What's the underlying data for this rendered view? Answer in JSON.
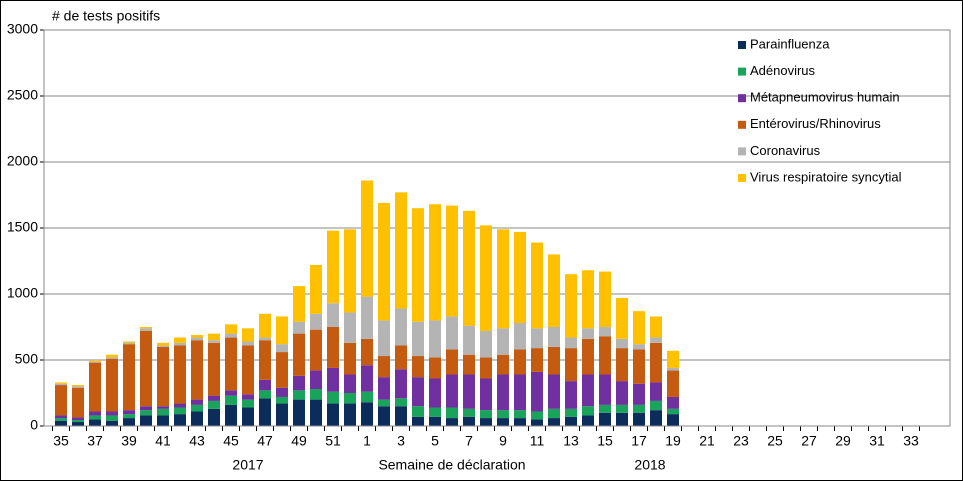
{
  "chart_data": {
    "type": "stacked_bar",
    "title": "# de tests positifs",
    "x_label": "Semaine de déclaration",
    "annotations": [
      "2017",
      "2018"
    ],
    "categories": [
      "35",
      null,
      "37",
      null,
      "39",
      null,
      "41",
      null,
      "43",
      null,
      "45",
      null,
      "47",
      null,
      "49",
      null,
      "51",
      null,
      "1",
      null,
      "3",
      null,
      "5",
      null,
      "7",
      null,
      "9",
      null,
      "11",
      null,
      "13",
      null,
      "15",
      null,
      "17",
      null,
      "19",
      null,
      "21",
      null,
      "23",
      null,
      "25",
      null,
      "27",
      null,
      "29",
      null,
      "31",
      null,
      "33",
      null
    ],
    "series": [
      {
        "name": "Parainfluenza",
        "color": "#0c2d5c",
        "values": [
          40,
          30,
          50,
          40,
          60,
          80,
          80,
          90,
          110,
          130,
          160,
          140,
          210,
          170,
          200,
          200,
          170,
          170,
          180,
          150,
          150,
          70,
          70,
          60,
          70,
          60,
          60,
          60,
          50,
          60,
          70,
          80,
          100,
          100,
          100,
          120,
          90,
          null,
          null,
          null,
          null,
          null,
          null,
          null,
          null,
          null,
          null,
          null,
          null,
          null,
          null,
          null
        ]
      },
      {
        "name": "Adénovirus",
        "color": "#1aa35a",
        "values": [
          20,
          15,
          30,
          40,
          30,
          40,
          50,
          50,
          50,
          60,
          70,
          60,
          60,
          50,
          70,
          80,
          90,
          80,
          80,
          50,
          60,
          80,
          70,
          80,
          60,
          60,
          60,
          60,
          60,
          70,
          60,
          70,
          60,
          60,
          60,
          70,
          40,
          null,
          null,
          null,
          null,
          null,
          null,
          null,
          null,
          null,
          null,
          null,
          null,
          null,
          null,
          null
        ]
      },
      {
        "name": "Métapneumovirus humain",
        "color": "#7030a0",
        "values": [
          20,
          20,
          30,
          30,
          30,
          30,
          20,
          30,
          40,
          40,
          40,
          40,
          80,
          70,
          110,
          140,
          180,
          140,
          200,
          170,
          220,
          220,
          220,
          250,
          260,
          240,
          270,
          270,
          300,
          260,
          210,
          240,
          230,
          180,
          160,
          140,
          90,
          null,
          null,
          null,
          null,
          null,
          null,
          null,
          null,
          null,
          null,
          null,
          null,
          null,
          null,
          null
        ]
      },
      {
        "name": "Entérovirus/Rhinovirus",
        "color": "#c55a11",
        "values": [
          230,
          225,
          370,
          400,
          500,
          570,
          450,
          440,
          450,
          400,
          400,
          370,
          300,
          270,
          320,
          310,
          310,
          240,
          200,
          160,
          180,
          160,
          160,
          190,
          150,
          160,
          150,
          190,
          180,
          210,
          250,
          270,
          290,
          250,
          260,
          300,
          200,
          null,
          null,
          null,
          null,
          null,
          null,
          null,
          null,
          null,
          null,
          null,
          null,
          null,
          null,
          null
        ]
      },
      {
        "name": "Coronavirus",
        "color": "#b4b4b4",
        "values": [
          10,
          10,
          10,
          10,
          10,
          20,
          10,
          20,
          20,
          20,
          30,
          30,
          20,
          60,
          90,
          120,
          180,
          230,
          320,
          270,
          280,
          260,
          280,
          250,
          220,
          200,
          200,
          200,
          150,
          150,
          80,
          80,
          70,
          70,
          40,
          40,
          20,
          null,
          null,
          null,
          null,
          null,
          null,
          null,
          null,
          null,
          null,
          null,
          null,
          null,
          null,
          null
        ]
      },
      {
        "name": "Virus respiratoire syncytial",
        "color": "#ffc000",
        "values": [
          10,
          10,
          10,
          20,
          10,
          10,
          20,
          40,
          20,
          50,
          70,
          100,
          180,
          210,
          270,
          370,
          550,
          630,
          880,
          890,
          880,
          860,
          880,
          840,
          870,
          800,
          750,
          690,
          650,
          550,
          480,
          440,
          420,
          310,
          250,
          160,
          130,
          null,
          null,
          null,
          null,
          null,
          null,
          null,
          null,
          null,
          null,
          null,
          null,
          null,
          null,
          null
        ]
      }
    ],
    "ylim": [
      0,
      3000
    ],
    "yticks": [
      0,
      500,
      1000,
      1500,
      2000,
      2500,
      3000
    ],
    "grid": true,
    "legend": "right"
  }
}
